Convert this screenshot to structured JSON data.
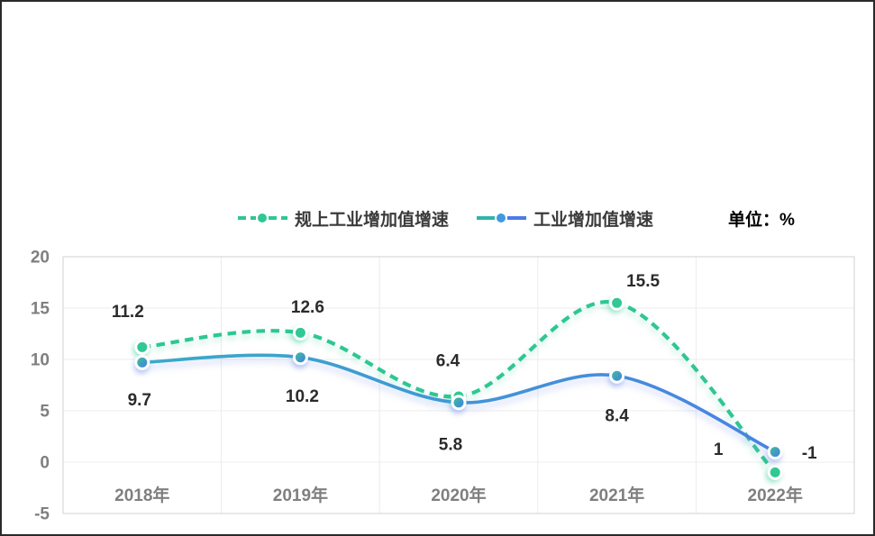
{
  "legend": {
    "items": [
      {
        "label": "规上工业增加值增速",
        "style": "dashed",
        "color": "#2fc792"
      },
      {
        "label": "工业增加值增速",
        "style": "solid",
        "color_start": "#2eb4ab",
        "color_mid": "#3f9bdc",
        "color_end": "#4b7ce8"
      }
    ],
    "unit_label": "单位：%"
  },
  "chart_data": {
    "type": "line",
    "title": "",
    "xlabel": "",
    "ylabel": "",
    "categories": [
      "2018年",
      "2019年",
      "2020年",
      "2021年",
      "2022年"
    ],
    "series": [
      {
        "name": "规上工业增加值增速",
        "values": [
          11.2,
          12.6,
          6.4,
          15.5,
          -1
        ],
        "labels": [
          "11.2",
          "12.6",
          "6.4",
          "15.5",
          "-1"
        ],
        "line_style": "dashed",
        "color": "#2fc792",
        "marker_color": "#31c893",
        "label_offsets": [
          [
            -16,
            -40
          ],
          [
            8,
            -29
          ],
          [
            -12,
            -40
          ],
          [
            29,
            -25
          ],
          [
            38,
            -22
          ]
        ]
      },
      {
        "name": "工业增加值增速",
        "values": [
          9.7,
          10.2,
          5.8,
          8.4,
          1
        ],
        "labels": [
          "9.7",
          "10.2",
          "5.8",
          "8.4",
          "1"
        ],
        "line_style": "solid",
        "color_start": "#35b0c4",
        "color_end": "#4b7ce8",
        "marker_gradient": [
          "#3dc593",
          "#4478ea"
        ],
        "label_offsets": [
          [
            -3,
            41
          ],
          [
            2,
            43
          ],
          [
            -9,
            46
          ],
          [
            0,
            44
          ],
          [
            -63,
            -3
          ]
        ]
      }
    ],
    "ylim": [
      -5,
      20
    ],
    "yticks": [
      20,
      15,
      10,
      5,
      0,
      -5
    ],
    "grid": true,
    "legend_position": "top",
    "styles": {
      "tick_color": "#7f7f7f",
      "grid_color": "#ececec",
      "plot_border_color": "#d8d8d8",
      "data_label_color": "#2b2b2b"
    }
  }
}
